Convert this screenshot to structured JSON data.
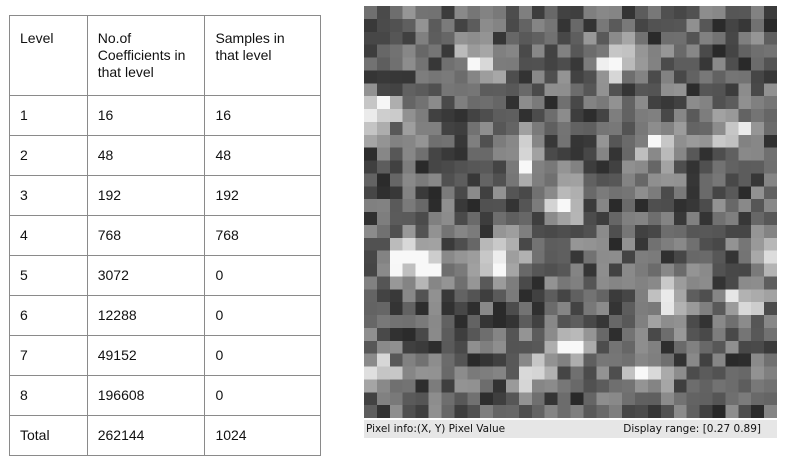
{
  "table": {
    "headers": [
      "Level",
      "No.of Coefficients in that level",
      "Samples in that level"
    ],
    "rows": [
      [
        "1",
        "16",
        "16"
      ],
      [
        "2",
        "48",
        "48"
      ],
      [
        "3",
        "192",
        "192"
      ],
      [
        "4",
        "768",
        "768"
      ],
      [
        "5",
        "3072",
        "0"
      ],
      [
        "6",
        "12288",
        "0"
      ],
      [
        "7",
        "49152",
        "0"
      ],
      [
        "8",
        "196608",
        "0"
      ],
      [
        "Total",
        "262144",
        "1024"
      ]
    ]
  },
  "viewer": {
    "pixel_info_label": "Pixel info:",
    "pixel_info_value": "(X, Y)  Pixel Value",
    "display_range_label": "Display range:",
    "display_range_value": "[0.27 0.89]"
  }
}
